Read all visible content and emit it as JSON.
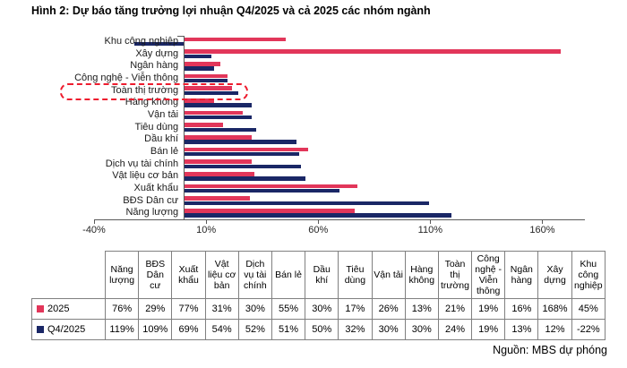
{
  "title": "Hình 2: Dự báo tăng trưởng lợi nhuận Q4/2025 và cả 2025 các nhóm ngành",
  "source": "Nguồn: MBS dự phóng",
  "colors": {
    "series_2025": "#E2365A",
    "series_q4_2025": "#1A2766",
    "highlight_dash": "#EE1C2E",
    "axis": "#595959",
    "table_border": "#808080"
  },
  "chart_data": {
    "type": "bar",
    "orientation": "horizontal-grouped",
    "categories": [
      "Khu công nghiệp",
      "Xây dựng",
      "Ngân hàng",
      "Công nghệ - Viễn thông",
      "Toàn thị trường",
      "Hàng không",
      "Vận tải",
      "Tiêu dùng",
      "Dầu khí",
      "Bán lẻ",
      "Dịch vụ tài chính",
      "Vật liệu cơ bản",
      "Xuất khẩu",
      "BĐS Dân cư",
      "Năng lượng"
    ],
    "series": [
      {
        "name": "2025",
        "color": "#E2365A",
        "values": [
          45,
          168,
          16,
          19,
          21,
          13,
          26,
          17,
          30,
          55,
          30,
          31,
          77,
          29,
          76
        ]
      },
      {
        "name": "Q4/2025",
        "color": "#1A2766",
        "values": [
          -22,
          12,
          13,
          19,
          24,
          30,
          30,
          32,
          50,
          51,
          52,
          54,
          69,
          109,
          119
        ]
      }
    ],
    "unit": "%",
    "xlim": [
      -40,
      179
    ],
    "xticks": [
      -40,
      10,
      60,
      110,
      160
    ],
    "xtick_labels": [
      "-40%",
      "10%",
      "60%",
      "110%",
      "160%"
    ],
    "grid": false,
    "highlight_category": "Toàn thị trường"
  },
  "table": {
    "columns": [
      "Năng lượng",
      "BĐS Dân cư",
      "Xuất khẩu",
      "Vật liệu cơ bản",
      "Dịch vụ tài chính",
      "Bán lẻ",
      "Dầu khí",
      "Tiêu dùng",
      "Vận tải",
      "Hàng không",
      "Toàn thị trường",
      "Công nghệ - Viễn thông",
      "Ngân hàng",
      "Xây dựng",
      "Khu công nghiệp"
    ],
    "rows": [
      {
        "label": "2025",
        "color": "#E2365A",
        "values": [
          "76%",
          "29%",
          "77%",
          "31%",
          "30%",
          "55%",
          "30%",
          "17%",
          "26%",
          "13%",
          "21%",
          "19%",
          "16%",
          "168%",
          "45%"
        ]
      },
      {
        "label": "Q4/2025",
        "color": "#1A2766",
        "values": [
          "119%",
          "109%",
          "69%",
          "54%",
          "52%",
          "51%",
          "50%",
          "32%",
          "30%",
          "30%",
          "24%",
          "19%",
          "13%",
          "12%",
          "-22%"
        ]
      }
    ]
  }
}
